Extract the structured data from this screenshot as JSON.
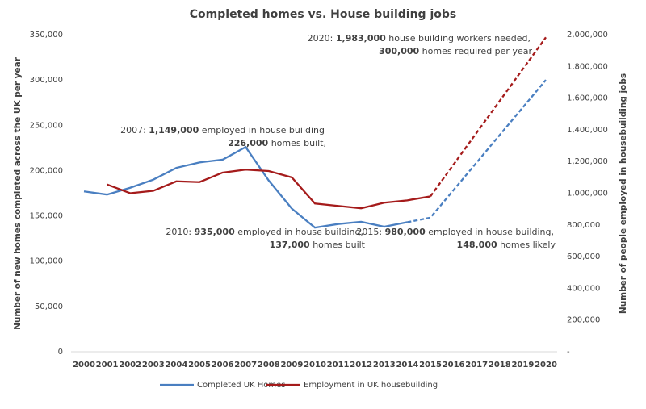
{
  "chart_data": {
    "type": "line",
    "title": "Completed homes vs. House building jobs",
    "y_label": "Number of new homes completed across the UK per year",
    "y2_label": "Number of people employed in housebuilding jobs",
    "categories": [
      "2000",
      "2001",
      "2002",
      "2003",
      "2004",
      "2005",
      "2006",
      "2007",
      "2008",
      "2009",
      "2010",
      "2011",
      "2012",
      "2013",
      "2014",
      "2015",
      "2016",
      "2017",
      "2018",
      "2019",
      "2020"
    ],
    "series": [
      {
        "name": "Completed UK Homes",
        "color": "#4a7fc1",
        "axis": "y",
        "dash_start": "2014",
        "values": [
          177000,
          173500,
          181000,
          190000,
          203000,
          209000,
          212000,
          226000,
          189000,
          158000,
          137000,
          141000,
          143500,
          138000,
          143000,
          148000,
          178400,
          208800,
          239200,
          269600,
          300000
        ]
      },
      {
        "name": "Employment in UK housebuilding",
        "color": "#a51b1b",
        "axis": "y2",
        "dash_start": "2015",
        "values": [
          null,
          1055000,
          1000000,
          1015000,
          1075000,
          1070000,
          1130000,
          1149000,
          1140000,
          1100000,
          935000,
          920000,
          905000,
          940000,
          955000,
          980000,
          1180600,
          1381200,
          1581800,
          1782400,
          1983000
        ]
      }
    ],
    "ylim": [
      0,
      350000
    ],
    "yticks": [
      0,
      {
        "value": 50000,
        "label": "50,000"
      },
      {
        "value": 100000,
        "label": "100,000"
      },
      {
        "value": 150000,
        "label": "150,000"
      },
      {
        "value": 200000,
        "label": "200,000"
      },
      {
        "value": 250000,
        "label": "250,000"
      },
      {
        "value": 300000,
        "label": "300,000"
      },
      {
        "value": 350000,
        "label": "350,000"
      }
    ],
    "y2lim": [
      0,
      2000000
    ],
    "y2ticks": [
      {
        "value": 0,
        "label": "-"
      },
      {
        "value": 200000,
        "label": "200,000"
      },
      {
        "value": 400000,
        "label": "400,000"
      },
      {
        "value": 600000,
        "label": "600,000"
      },
      {
        "value": 800000,
        "label": "800,000"
      },
      {
        "value": 1000000,
        "label": "1,000,000"
      },
      {
        "value": 1200000,
        "label": "1,200,000"
      },
      {
        "value": 1400000,
        "label": "1,400,000"
      },
      {
        "value": 1600000,
        "label": "1,600,000"
      },
      {
        "value": 1800000,
        "label": "1,800,000"
      },
      {
        "value": 2000000,
        "label": "2,000,000"
      }
    ],
    "grid": false,
    "legend": "bottom",
    "annotations": [
      {
        "lines": [
          [
            {
              "text": "2007: ",
              "bold": false
            },
            {
              "text": "1,149,000",
              "bold": true
            },
            {
              "text": " employed in house building",
              "bold": false
            }
          ],
          [
            {
              "text": "226,000",
              "bold": true
            },
            {
              "text": " homes built,",
              "bold": false
            }
          ]
        ]
      },
      {
        "lines": [
          [
            {
              "text": "2010: ",
              "bold": false
            },
            {
              "text": "935,000",
              "bold": true
            },
            {
              "text": " employed in house building,",
              "bold": false
            }
          ],
          [
            {
              "text": "137,000",
              "bold": true
            },
            {
              "text": " homes built",
              "bold": false
            }
          ]
        ]
      },
      {
        "lines": [
          [
            {
              "text": "2015: ",
              "bold": false
            },
            {
              "text": "980,000",
              "bold": true
            },
            {
              "text": " employed in house building,",
              "bold": false
            }
          ],
          [
            {
              "text": "148,000",
              "bold": true
            },
            {
              "text": " homes likely",
              "bold": false
            }
          ]
        ]
      },
      {
        "lines": [
          [
            {
              "text": "2020: ",
              "bold": false
            },
            {
              "text": "1,983,000",
              "bold": true
            },
            {
              "text": " house building workers needed,",
              "bold": false
            }
          ],
          [
            {
              "text": "300,000",
              "bold": true
            },
            {
              "text": " homes required per year",
              "bold": false
            }
          ]
        ]
      }
    ]
  }
}
